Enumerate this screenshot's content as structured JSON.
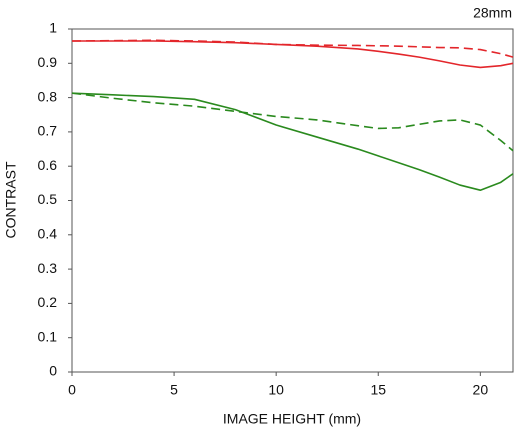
{
  "chart_data": {
    "type": "line",
    "annotation": "28mm",
    "x_label": "IMAGE HEIGHT (mm)",
    "y_label": "CONTRAST",
    "x": [
      0,
      2,
      4,
      6,
      8,
      10,
      12,
      14,
      15,
      16,
      17,
      18,
      19,
      20,
      21,
      21.6
    ],
    "series": [
      {
        "color": "#e3262b",
        "dashed": false,
        "values": [
          0.965,
          0.965,
          0.965,
          0.963,
          0.96,
          0.955,
          0.95,
          0.942,
          0.935,
          0.927,
          0.918,
          0.907,
          0.895,
          0.888,
          0.893,
          0.9
        ]
      },
      {
        "color": "#e3262b",
        "dashed": true,
        "values": [
          0.965,
          0.966,
          0.967,
          0.965,
          0.962,
          0.955,
          0.953,
          0.952,
          0.951,
          0.95,
          0.948,
          0.946,
          0.945,
          0.94,
          0.928,
          0.918
        ]
      },
      {
        "color": "#2a8a1e",
        "dashed": false,
        "values": [
          0.813,
          0.808,
          0.803,
          0.795,
          0.765,
          0.72,
          0.685,
          0.65,
          0.63,
          0.61,
          0.59,
          0.568,
          0.545,
          0.53,
          0.553,
          0.578
        ]
      },
      {
        "color": "#2a8a1e",
        "dashed": true,
        "values": [
          0.813,
          0.798,
          0.785,
          0.775,
          0.76,
          0.745,
          0.735,
          0.718,
          0.71,
          0.712,
          0.722,
          0.732,
          0.735,
          0.72,
          0.675,
          0.645
        ]
      }
    ],
    "xlim": [
      0,
      21.6
    ],
    "xticks": [
      0,
      5,
      10,
      15,
      20
    ],
    "ylim": [
      0,
      1
    ],
    "yticks": [
      0,
      0.1,
      0.2,
      0.3,
      0.4,
      0.5,
      0.6,
      0.7,
      0.8,
      0.9,
      1
    ]
  }
}
